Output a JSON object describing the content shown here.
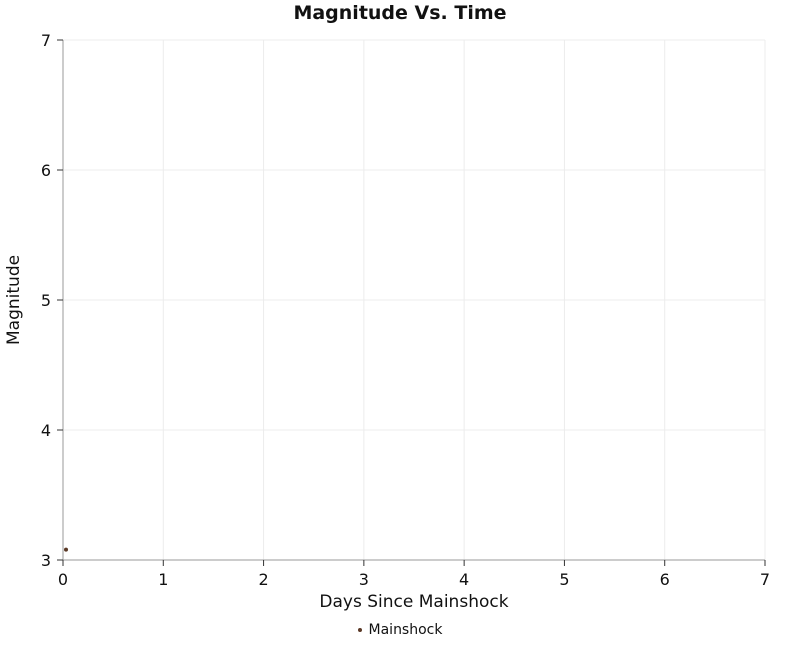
{
  "chart_data": {
    "type": "scatter",
    "title": "Magnitude Vs. Time",
    "xlabel": "Days Since Mainshock",
    "ylabel": "Magnitude",
    "xlim": [
      0,
      7
    ],
    "ylim": [
      3,
      7
    ],
    "xticks": [
      0,
      1,
      2,
      3,
      4,
      5,
      6,
      7
    ],
    "yticks": [
      3,
      4,
      5,
      6,
      7
    ],
    "grid": true,
    "grid_color": "#ececec",
    "axis_color": "#9a9a9a",
    "tick_color": "#333333",
    "label_color": "#111111",
    "legend": {
      "position": "bottom",
      "entries": [
        {
          "label": "Mainshock",
          "color": "#5a3825"
        }
      ]
    },
    "series": [
      {
        "name": "Mainshock",
        "color": "#5a3825",
        "marker_radius": 2,
        "points": [
          {
            "x": 0.03,
            "y": 3.08
          }
        ]
      }
    ]
  }
}
